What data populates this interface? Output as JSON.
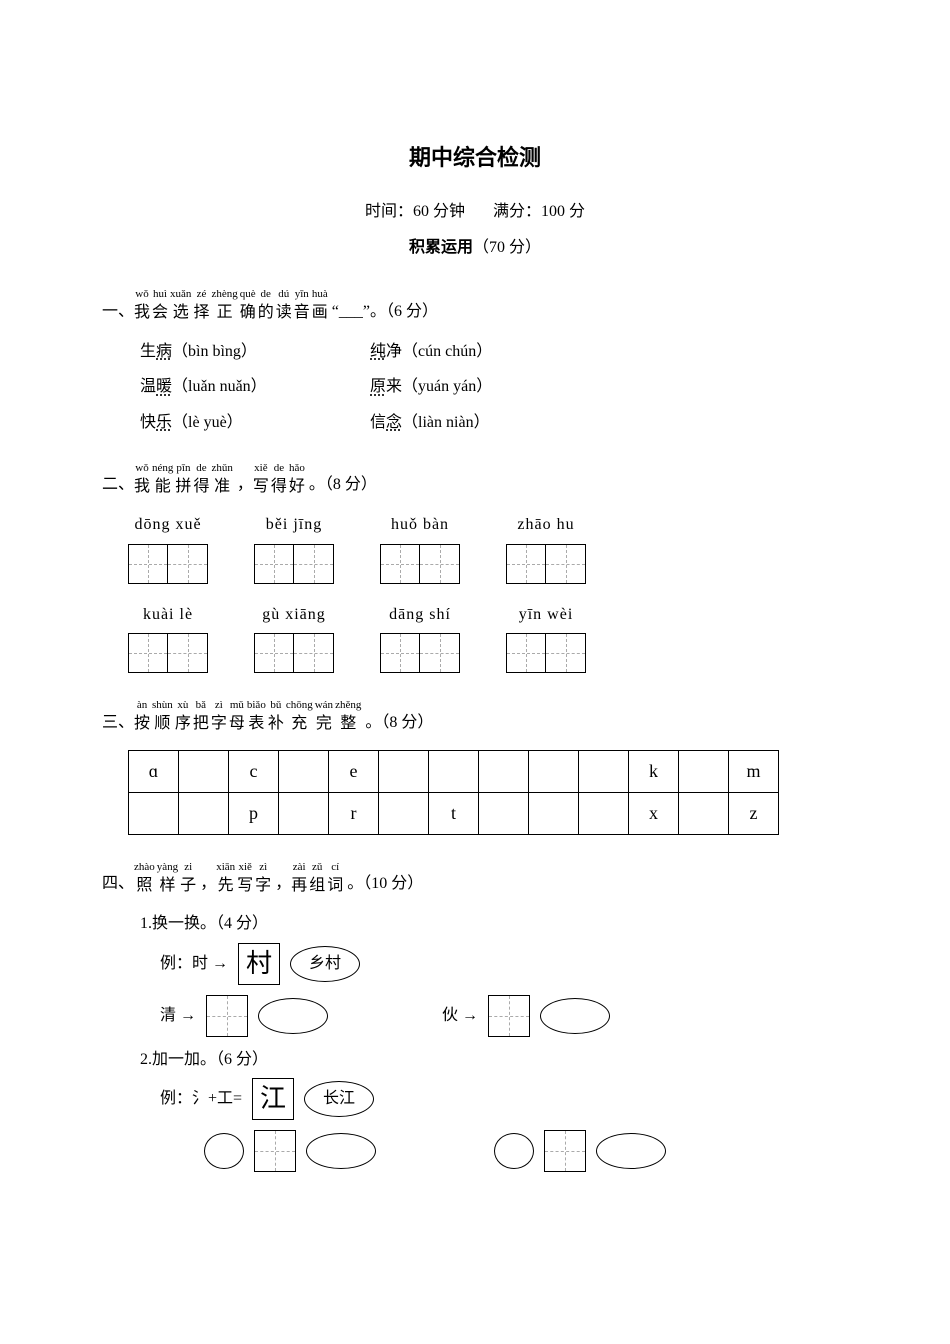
{
  "title": "期中综合检测",
  "time_label": "时间：60 分钟",
  "score_label": "满分：100 分",
  "section_heading_bold": "积累运用",
  "section_heading_rest": "（70 分）",
  "q1": {
    "num": "一、",
    "ruby": [
      {
        "py": "wǒ",
        "ch": "我"
      },
      {
        "py": "huì",
        "ch": "会"
      },
      {
        "py": "xuǎn",
        "ch": "选"
      },
      {
        "py": "zé",
        "ch": "择"
      },
      {
        "py": "zhèng",
        "ch": "正"
      },
      {
        "py": "què",
        "ch": "确"
      },
      {
        "py": "de",
        "ch": "的"
      },
      {
        "py": "dú",
        "ch": "读"
      },
      {
        "py": "yīn",
        "ch": "音"
      },
      {
        "py": "huà",
        "ch": "画"
      }
    ],
    "tail": "“___”。（6 分）",
    "rows": [
      {
        "l_pre": "生",
        "l_dot": "病",
        "l_py": "（bìn bìng）",
        "r_pre": "",
        "r_dot": "纯",
        "r_post": "净（cún chún）"
      },
      {
        "l_pre": "温",
        "l_dot": "暖",
        "l_py": "（luǎn nuǎn）",
        "r_pre": "",
        "r_dot": "原",
        "r_post": "来（yuán yán）"
      },
      {
        "l_pre": "快",
        "l_dot": "乐",
        "l_py": "（lè yuè）",
        "r_pre": "信",
        "r_dot": "念",
        "r_post": "（liàn niàn）"
      }
    ]
  },
  "q2": {
    "num": "二、",
    "ruby": [
      {
        "py": "wǒ",
        "ch": "我"
      },
      {
        "py": "néng",
        "ch": "能"
      },
      {
        "py": "pīn",
        "ch": "拼"
      },
      {
        "py": "de",
        "ch": "得"
      },
      {
        "py": "zhǔn",
        "ch": "准"
      }
    ],
    "mid": "，",
    "ruby2": [
      {
        "py": "xiě",
        "ch": "写"
      },
      {
        "py": "de",
        "ch": "得"
      },
      {
        "py": "hǎo",
        "ch": "好"
      }
    ],
    "tail": "。（8 分）",
    "row1": [
      "dōng  xuě",
      "běi jīng",
      "huǒ  bàn",
      "zhāo  hu"
    ],
    "row2": [
      "kuài  lè",
      "gù  xiāng",
      "dāng  shí",
      "yīn  wèi"
    ]
  },
  "q3": {
    "num": "三、",
    "ruby": [
      {
        "py": "àn",
        "ch": "按"
      },
      {
        "py": "shùn",
        "ch": "顺"
      },
      {
        "py": "xù",
        "ch": "序"
      },
      {
        "py": "bǎ",
        "ch": "把"
      },
      {
        "py": "zì",
        "ch": "字"
      },
      {
        "py": "mǔ",
        "ch": "母"
      },
      {
        "py": "biǎo",
        "ch": "表"
      },
      {
        "py": "bǔ",
        "ch": "补"
      },
      {
        "py": "chōng",
        "ch": "充"
      },
      {
        "py": "wán",
        "ch": "完"
      },
      {
        "py": "zhěng",
        "ch": "整"
      }
    ],
    "tail": "。（8 分）",
    "row1": [
      "ɑ",
      "",
      "c",
      "",
      "e",
      "",
      "",
      "",
      "",
      "",
      "k",
      "",
      "m"
    ],
    "row2": [
      "",
      "",
      "p",
      "",
      "r",
      "",
      "t",
      "",
      "",
      "",
      "x",
      "",
      "z"
    ]
  },
  "q4": {
    "num": "四、",
    "ruby": [
      {
        "py": "zhào",
        "ch": "照"
      },
      {
        "py": "yàng",
        "ch": "样"
      },
      {
        "py": "zi",
        "ch": "子"
      }
    ],
    "mid1": "，",
    "ruby2": [
      {
        "py": "xiān",
        "ch": "先"
      },
      {
        "py": "xiě",
        "ch": "写"
      },
      {
        "py": "zì",
        "ch": "字"
      }
    ],
    "mid2": "，",
    "ruby3": [
      {
        "py": "zài",
        "ch": "再"
      },
      {
        "py": "zǔ",
        "ch": "组"
      },
      {
        "py": "cí",
        "ch": "词"
      }
    ],
    "tail": "。（10 分）",
    "sub1_label": "1.换一换。（4 分）",
    "ex1_label": "例：时 →",
    "ex1_char": "村",
    "ex1_word": "乡村",
    "s1a_label": "清 →",
    "s1b_label": "伙 →",
    "sub2_label": "2.加一加。（6 分）",
    "ex2_label": "例：氵+工=",
    "ex2_char": "江",
    "ex2_word": "长江"
  }
}
